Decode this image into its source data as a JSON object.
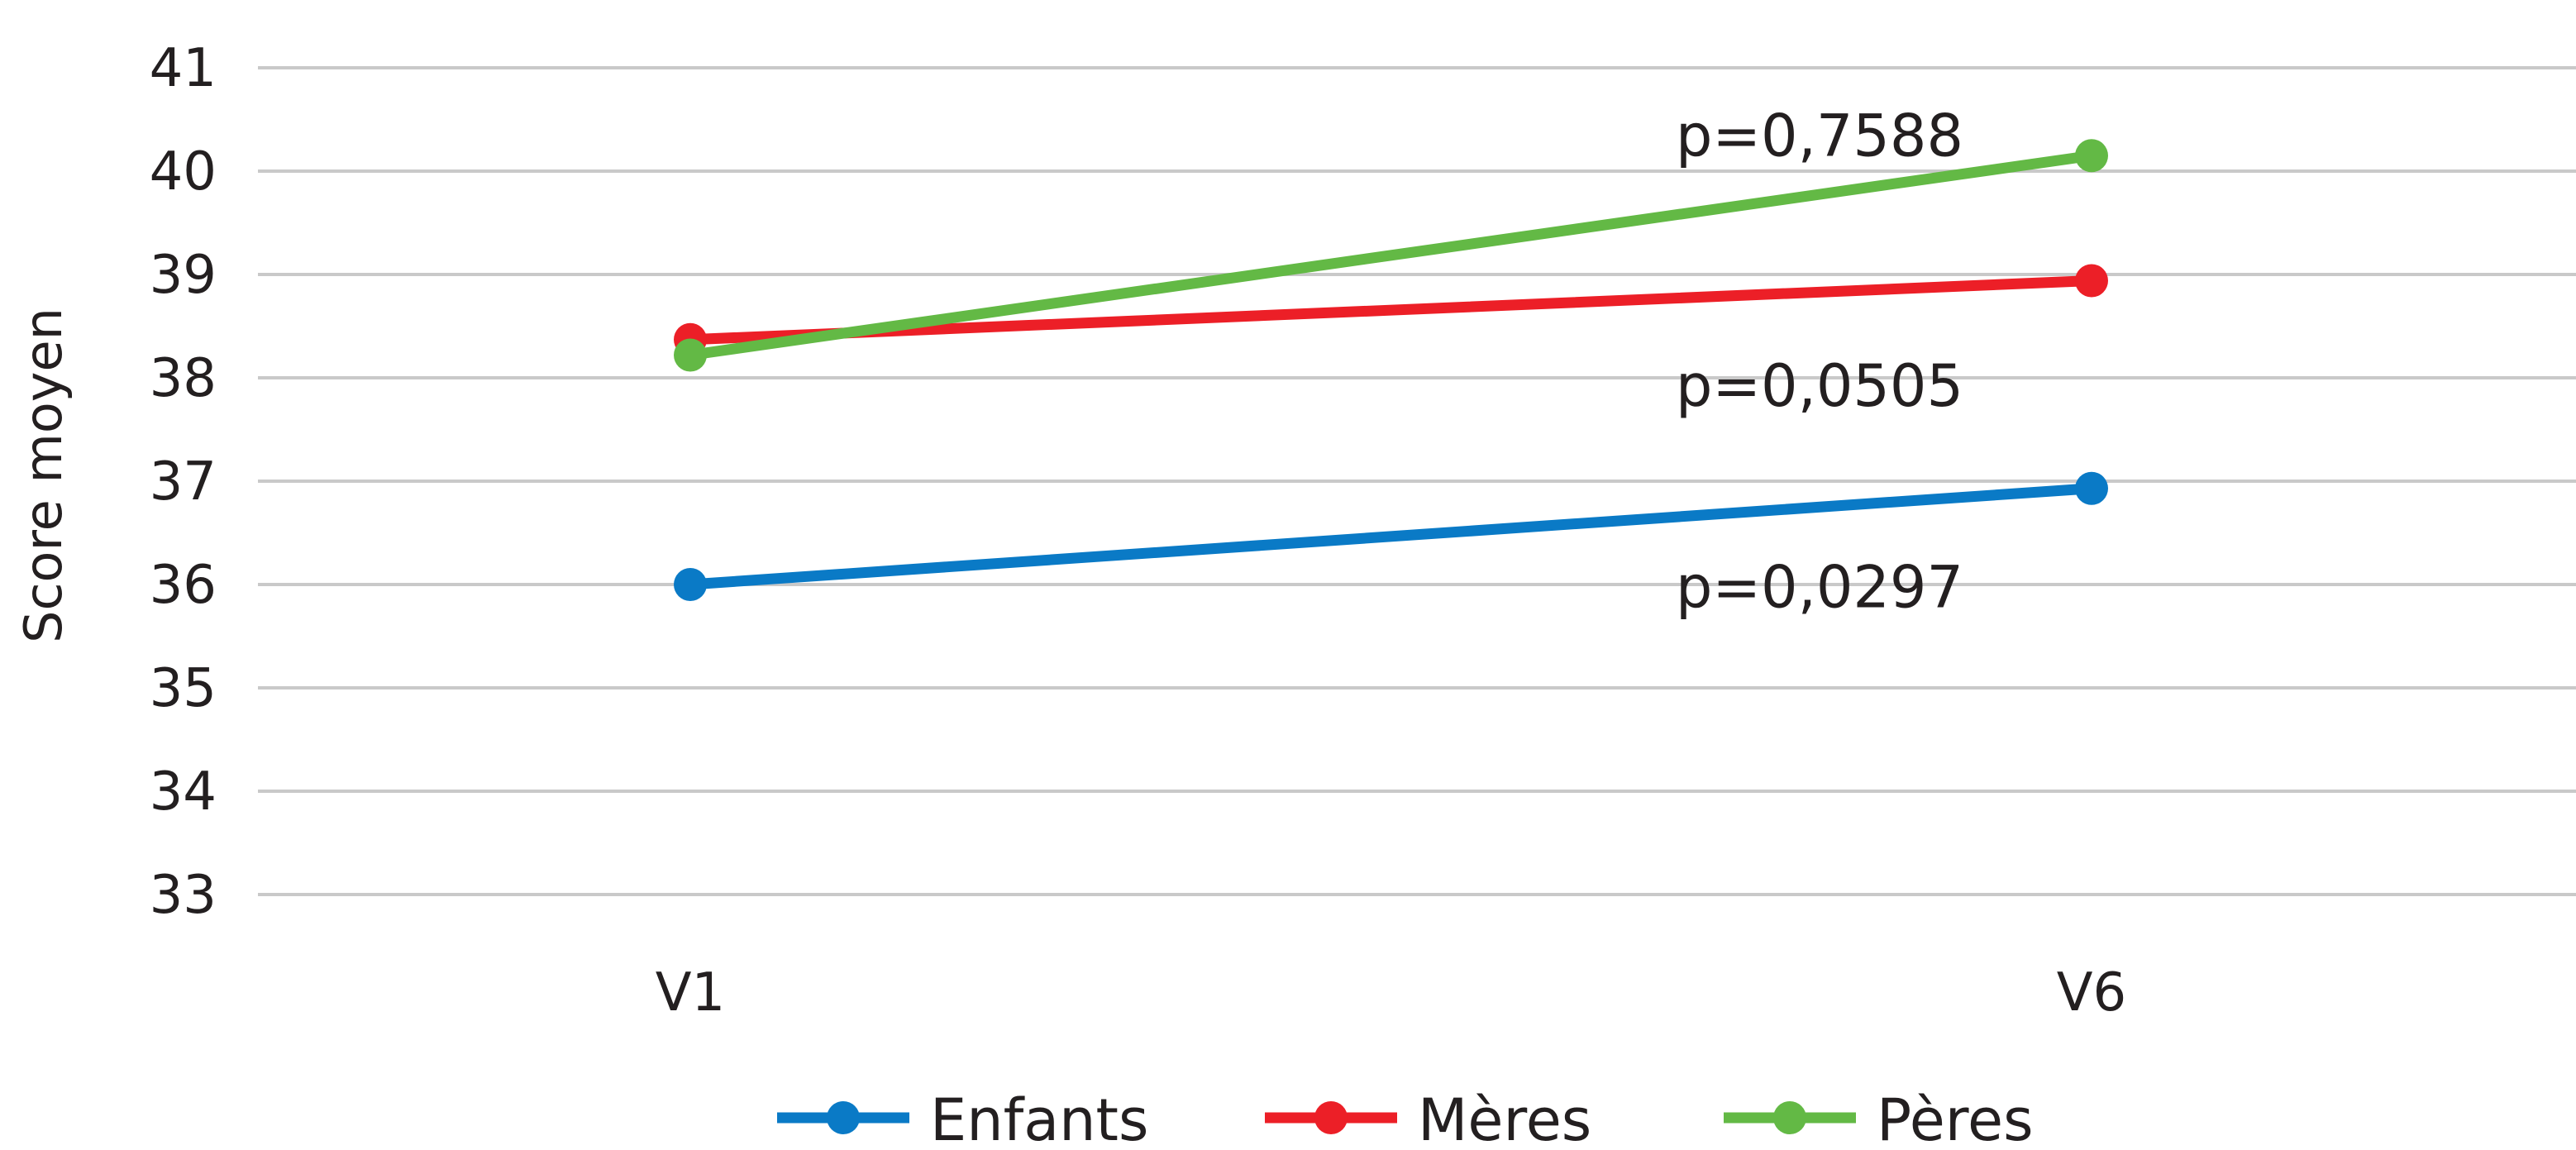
{
  "chart_data": {
    "type": "line",
    "categories": [
      "V1",
      "V6"
    ],
    "ylabel": "Score moyen",
    "xlabel": "",
    "ylim": [
      33,
      41
    ],
    "yticks": [
      33,
      34,
      35,
      36,
      37,
      38,
      39,
      40,
      41
    ],
    "grid": true,
    "legend_position": "bottom",
    "series": [
      {
        "name": "Enfants",
        "values": [
          36.0,
          36.93
        ],
        "color": "#0a7ac6"
      },
      {
        "name": "Mères",
        "values": [
          38.37,
          38.94
        ],
        "color": "#ec1f27"
      },
      {
        "name": "Pères",
        "values": [
          38.22,
          40.15
        ],
        "color": "#63b945"
      }
    ],
    "annotations": [
      {
        "text": "p=0,7588",
        "x": "V6",
        "y": 40.35
      },
      {
        "text": "p=0,0505",
        "x": "V6",
        "y": 37.93
      },
      {
        "text": "p=0,0297",
        "x": "V6",
        "y": 35.98
      }
    ]
  }
}
